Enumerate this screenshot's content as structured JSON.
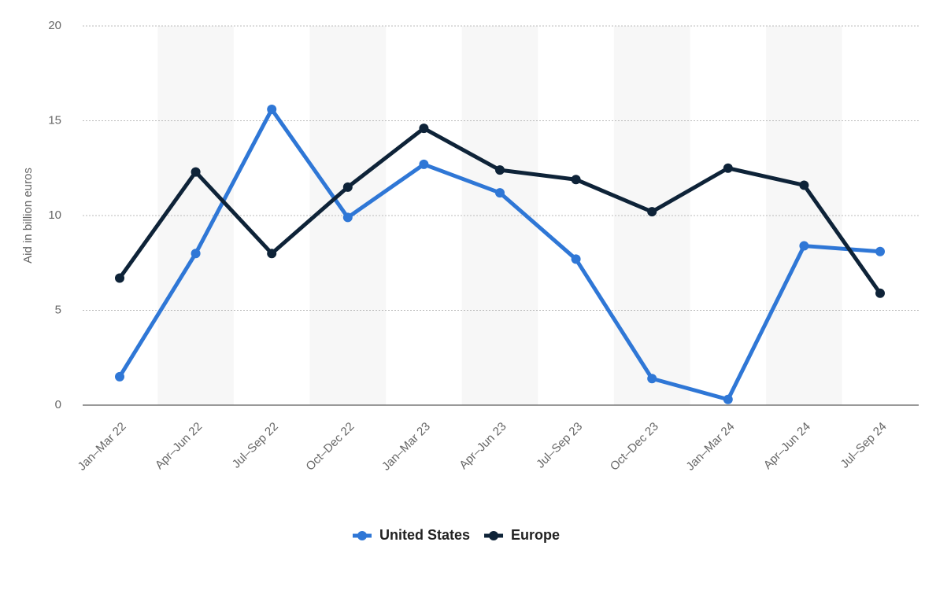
{
  "chart_data": {
    "type": "line",
    "y_label": "Aid in billion euros",
    "categories": [
      "Jan–Mar 22",
      "Apr–Jun 22",
      "Jul–Sep 22",
      "Oct–Dec 22",
      "Jan–Mar 23",
      "Apr–Jun 23",
      "Jul–Sep 23",
      "Oct–Dec 23",
      "Jan–Mar 24",
      "Apr–Jun 24",
      "Jul–Sep 24"
    ],
    "series": [
      {
        "name": "United States",
        "color": "#2f77d6",
        "values": [
          1.5,
          8.0,
          15.6,
          9.9,
          12.7,
          11.2,
          7.7,
          1.4,
          0.3,
          8.4,
          8.1
        ]
      },
      {
        "name": "Europe",
        "color": "#0e2338",
        "values": [
          6.7,
          12.3,
          8.0,
          11.5,
          14.6,
          12.4,
          11.9,
          10.2,
          12.5,
          11.6,
          5.9
        ]
      }
    ],
    "ylim": [
      0,
      20
    ],
    "yticks": [
      0,
      5,
      10,
      15,
      20
    ],
    "grid": true,
    "legend": "bottom"
  }
}
